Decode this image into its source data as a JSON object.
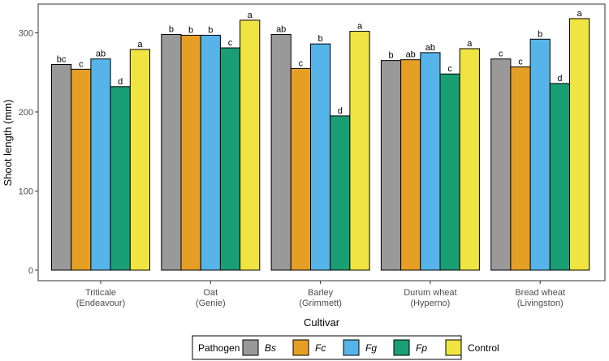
{
  "chart_data": {
    "type": "bar",
    "title": "",
    "xlabel": "Cultivar",
    "ylabel": "Shoot length (mm)",
    "ylim": [
      0,
      340
    ],
    "yticks": [
      0,
      100,
      200,
      300
    ],
    "grid": false,
    "legend_position": "bottom",
    "legend_title": "Pathogen",
    "categories": [
      [
        "Triticale",
        "(Endeavour)"
      ],
      [
        "Oat",
        "(Genie)"
      ],
      [
        "Barley",
        "(Grimmett)"
      ],
      [
        "Durum wheat",
        "(Hyperno)"
      ],
      [
        "Bread wheat",
        "(Livingston)"
      ]
    ],
    "series": [
      {
        "name": "Bs",
        "italic": true,
        "color": "#999999",
        "values": [
          260,
          298,
          298,
          265,
          267
        ],
        "labels": [
          "bc",
          "b",
          "ab",
          "b",
          "c"
        ]
      },
      {
        "name": "Fc",
        "italic": true,
        "color": "#E69F25",
        "values": [
          254,
          297,
          255,
          266,
          257
        ],
        "labels": [
          "c",
          "b",
          "c",
          "ab",
          "c"
        ]
      },
      {
        "name": "Fg",
        "italic": true,
        "color": "#56B4E9",
        "values": [
          267,
          297,
          286,
          275,
          292
        ],
        "labels": [
          "ab",
          "b",
          "b",
          "ab",
          "b"
        ]
      },
      {
        "name": "Fp",
        "italic": true,
        "color": "#1A9E74",
        "values": [
          232,
          281,
          195,
          248,
          236
        ],
        "labels": [
          "d",
          "c",
          "d",
          "c",
          "d"
        ]
      },
      {
        "name": "Control",
        "italic": false,
        "color": "#F0E442",
        "values": [
          279,
          316,
          302,
          280,
          318
        ],
        "labels": [
          "a",
          "a",
          "a",
          "a",
          "a"
        ]
      }
    ]
  }
}
